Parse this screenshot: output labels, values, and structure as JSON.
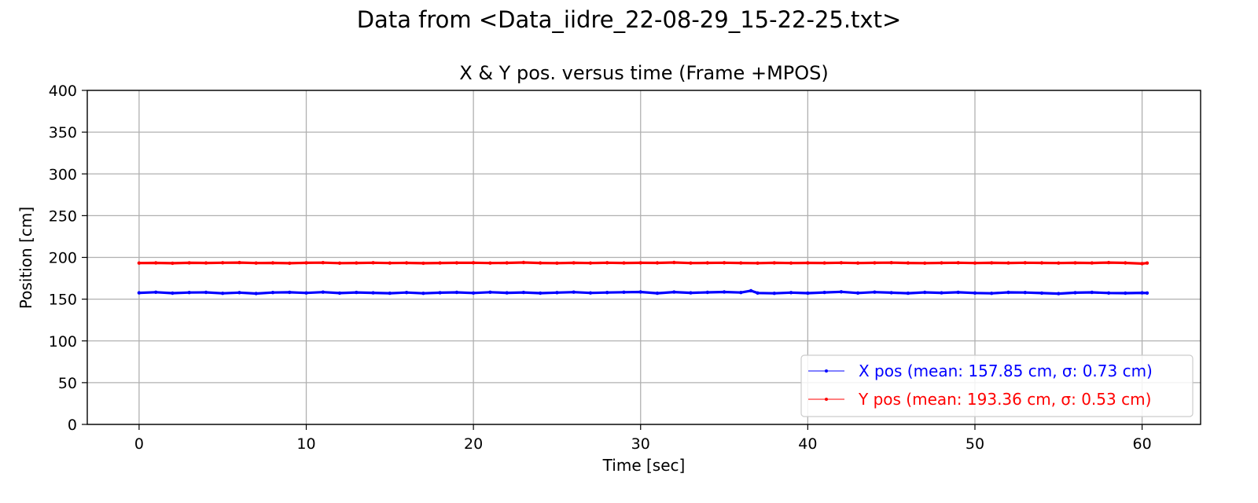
{
  "figure": {
    "suptitle": "Data from <Data_iidre_22-08-29_15-22-25.txt>"
  },
  "chart_data": {
    "type": "line",
    "title": "X & Y pos. versus time (Frame +MPOS)",
    "xlabel": "Time [sec]",
    "ylabel": "Position [cm]",
    "xlim": [
      -3.1,
      63.5
    ],
    "ylim": [
      0,
      400
    ],
    "xticks": [
      0,
      10,
      20,
      30,
      40,
      50,
      60
    ],
    "yticks": [
      0,
      50,
      100,
      150,
      200,
      250,
      300,
      350,
      400
    ],
    "grid": true,
    "legend_position": "lower-right",
    "series": [
      {
        "name": "X pos (mean: 157.85 cm, σ: 0.73 cm)",
        "color": "#0000ff",
        "x": [
          0,
          1,
          2,
          3,
          4,
          5,
          6,
          7,
          8,
          9,
          10,
          11,
          12,
          13,
          14,
          15,
          16,
          17,
          18,
          19,
          20,
          21,
          22,
          23,
          24,
          25,
          26,
          27,
          28,
          29,
          30,
          31,
          32,
          33,
          34,
          35,
          36,
          36.6,
          37,
          38,
          39,
          40,
          41,
          42,
          43,
          44,
          45,
          46,
          47,
          48,
          49,
          50,
          51,
          52,
          53,
          54,
          55,
          56,
          57,
          58,
          59,
          60,
          60.3
        ],
        "y": [
          157.6,
          158.3,
          157.2,
          157.9,
          158.1,
          157.0,
          157.8,
          156.7,
          157.9,
          158.2,
          157.5,
          158.4,
          157.3,
          158.0,
          157.6,
          157.1,
          157.9,
          157.0,
          157.7,
          158.1,
          157.4,
          158.3,
          157.6,
          158.0,
          157.2,
          157.8,
          158.4,
          157.5,
          157.9,
          158.3,
          158.6,
          157.1,
          158.5,
          157.6,
          158.1,
          158.6,
          157.9,
          160.1,
          157.4,
          157.0,
          157.8,
          157.2,
          158.0,
          158.8,
          157.4,
          158.4,
          157.7,
          157.1,
          158.1,
          157.6,
          158.2,
          157.4,
          157.0,
          158.1,
          157.9,
          157.3,
          156.6,
          157.7,
          158.1,
          157.4,
          157.2,
          157.6,
          157.4
        ]
      },
      {
        "name": "Y pos (mean: 193.36 cm, σ: 0.53 cm)",
        "color": "#ff0000",
        "x": [
          0,
          1,
          2,
          3,
          4,
          5,
          6,
          7,
          8,
          9,
          10,
          11,
          12,
          13,
          14,
          15,
          16,
          17,
          18,
          19,
          20,
          21,
          22,
          23,
          24,
          25,
          26,
          27,
          28,
          29,
          30,
          31,
          32,
          33,
          34,
          35,
          36,
          37,
          38,
          39,
          40,
          41,
          42,
          43,
          44,
          45,
          46,
          47,
          48,
          49,
          50,
          51,
          52,
          53,
          54,
          55,
          56,
          57,
          58,
          59,
          60,
          60.3
        ],
        "y": [
          193.2,
          193.4,
          193.0,
          193.5,
          193.3,
          193.6,
          193.8,
          193.2,
          193.4,
          193.0,
          193.5,
          193.7,
          193.1,
          193.3,
          193.6,
          193.2,
          193.4,
          193.0,
          193.3,
          193.5,
          193.6,
          193.2,
          193.4,
          193.9,
          193.3,
          193.1,
          193.5,
          193.2,
          193.6,
          193.3,
          193.5,
          193.4,
          193.9,
          193.2,
          193.4,
          193.6,
          193.3,
          193.1,
          193.5,
          193.2,
          193.4,
          193.3,
          193.6,
          193.2,
          193.5,
          193.7,
          193.3,
          193.1,
          193.4,
          193.6,
          193.2,
          193.5,
          193.3,
          193.6,
          193.4,
          193.2,
          193.5,
          193.3,
          193.8,
          193.4,
          192.6,
          193.2
        ]
      }
    ]
  }
}
